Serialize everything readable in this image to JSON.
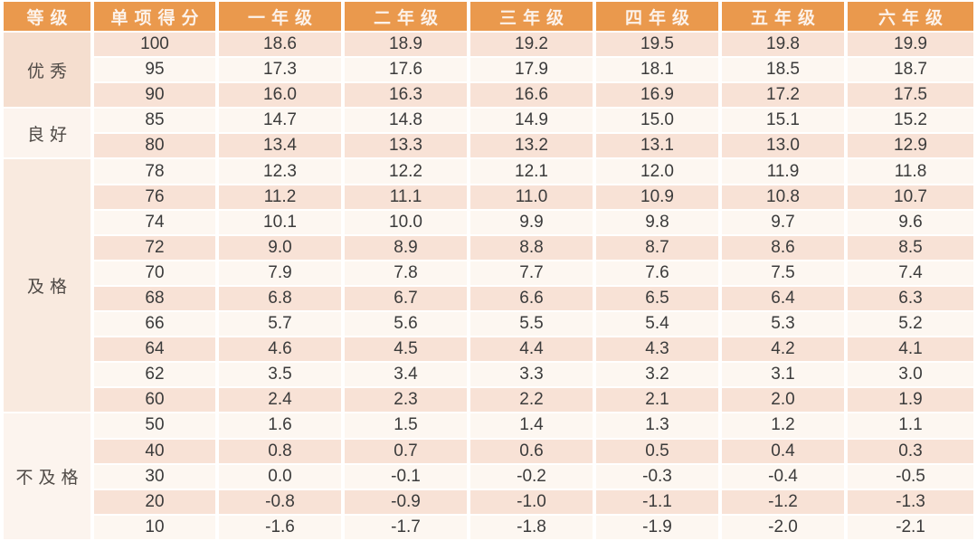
{
  "colors": {
    "header_bg": "#EA994D",
    "header_text": "#FCF2EA",
    "row_pink": "#F8E2D6",
    "row_light": "#FDF7F1",
    "grade_cell_excellent": "#F5DECF",
    "grade_cell_good": "#FCF4EE",
    "grade_cell_pass": "#F9EADF",
    "grade_cell_fail": "#FCF4EE",
    "value_text": "#3B3B3B"
  },
  "chart_data": {
    "type": "table",
    "columns": [
      "等级",
      "单项得分",
      "一年级",
      "二年级",
      "三年级",
      "四年级",
      "五年级",
      "六年级"
    ],
    "groups": [
      {
        "label": "优秀",
        "style": "grade-excellent",
        "rows": [
          [
            "100",
            "18.6",
            "18.9",
            "19.2",
            "19.5",
            "19.8",
            "19.9"
          ],
          [
            "95",
            "17.3",
            "17.6",
            "17.9",
            "18.1",
            "18.5",
            "18.7"
          ],
          [
            "90",
            "16.0",
            "16.3",
            "16.6",
            "16.9",
            "17.2",
            "17.5"
          ]
        ]
      },
      {
        "label": "良好",
        "style": "grade-good",
        "rows": [
          [
            "85",
            "14.7",
            "14.8",
            "14.9",
            "15.0",
            "15.1",
            "15.2"
          ],
          [
            "80",
            "13.4",
            "13.3",
            "13.2",
            "13.1",
            "13.0",
            "12.9"
          ]
        ]
      },
      {
        "label": "及格",
        "style": "grade-pass",
        "rows": [
          [
            "78",
            "12.3",
            "12.2",
            "12.1",
            "12.0",
            "11.9",
            "11.8"
          ],
          [
            "76",
            "11.2",
            "11.1",
            "11.0",
            "10.9",
            "10.8",
            "10.7"
          ],
          [
            "74",
            "10.1",
            "10.0",
            "9.9",
            "9.8",
            "9.7",
            "9.6"
          ],
          [
            "72",
            "9.0",
            "8.9",
            "8.8",
            "8.7",
            "8.6",
            "8.5"
          ],
          [
            "70",
            "7.9",
            "7.8",
            "7.7",
            "7.6",
            "7.5",
            "7.4"
          ],
          [
            "68",
            "6.8",
            "6.7",
            "6.6",
            "6.5",
            "6.4",
            "6.3"
          ],
          [
            "66",
            "5.7",
            "5.6",
            "5.5",
            "5.4",
            "5.3",
            "5.2"
          ],
          [
            "64",
            "4.6",
            "4.5",
            "4.4",
            "4.3",
            "4.2",
            "4.1"
          ],
          [
            "62",
            "3.5",
            "3.4",
            "3.3",
            "3.2",
            "3.1",
            "3.0"
          ],
          [
            "60",
            "2.4",
            "2.3",
            "2.2",
            "2.1",
            "2.0",
            "1.9"
          ]
        ]
      },
      {
        "label": "不及格",
        "style": "grade-fail",
        "rows": [
          [
            "50",
            "1.6",
            "1.5",
            "1.4",
            "1.3",
            "1.2",
            "1.1"
          ],
          [
            "40",
            "0.8",
            "0.7",
            "0.6",
            "0.5",
            "0.4",
            "0.3"
          ],
          [
            "30",
            "0.0",
            "-0.1",
            "-0.2",
            "-0.3",
            "-0.4",
            "-0.5"
          ],
          [
            "20",
            "-0.8",
            "-0.9",
            "-1.0",
            "-1.1",
            "-1.2",
            "-1.3"
          ],
          [
            "10",
            "-1.6",
            "-1.7",
            "-1.8",
            "-1.9",
            "-2.0",
            "-2.1"
          ]
        ]
      }
    ]
  }
}
